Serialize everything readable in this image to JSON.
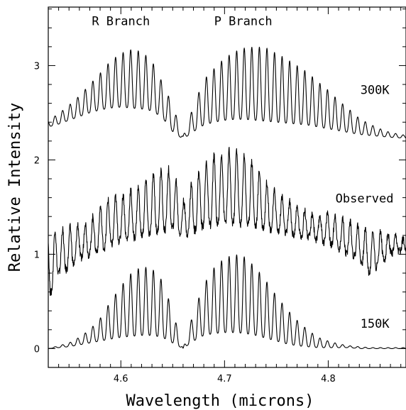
{
  "chart_data": {
    "type": "line",
    "title": "",
    "xlabel": "Wavelength (microns)",
    "ylabel": "Relative Intensity",
    "xlim": [
      4.53,
      4.875
    ],
    "ylim": [
      -0.2,
      3.62
    ],
    "x_ticks": [
      {
        "value": 4.6,
        "label": "4.6"
      },
      {
        "value": 4.7,
        "label": "4.7"
      },
      {
        "value": 4.8,
        "label": "4.8"
      }
    ],
    "y_ticks": [
      {
        "value": 0,
        "label": "0"
      },
      {
        "value": 1,
        "label": "1"
      },
      {
        "value": 2,
        "label": "2"
      },
      {
        "value": 3,
        "label": "3"
      }
    ],
    "grid": false,
    "annotations": [
      {
        "text": "R Branch",
        "x": 4.6,
        "y": 3.43
      },
      {
        "text": "P Branch",
        "x": 4.718,
        "y": 3.43
      },
      {
        "text": "300K",
        "x": 4.845,
        "y": 2.7
      },
      {
        "text": "Observed",
        "x": 4.835,
        "y": 1.55
      },
      {
        "text": "150K",
        "x": 4.845,
        "y": 0.22
      }
    ],
    "series": [
      {
        "name": "300K",
        "x": [
          4.53,
          4.54,
          4.55,
          4.56,
          4.57,
          4.58,
          4.59,
          4.6,
          4.61,
          4.62,
          4.63,
          4.64,
          4.65,
          4.66,
          4.67,
          4.68,
          4.69,
          4.7,
          4.71,
          4.72,
          4.73,
          4.74,
          4.75,
          4.76,
          4.77,
          4.78,
          4.79,
          4.8,
          4.81,
          4.82,
          4.83,
          4.84,
          4.85,
          4.86,
          4.875
        ],
        "y": [
          2.42,
          2.49,
          2.58,
          2.68,
          2.8,
          2.92,
          3.05,
          3.13,
          3.17,
          3.15,
          3.05,
          2.82,
          2.58,
          2.25,
          2.57,
          2.85,
          2.97,
          3.08,
          3.15,
          3.19,
          3.2,
          3.19,
          3.13,
          3.07,
          3.0,
          2.93,
          2.83,
          2.74,
          2.63,
          2.54,
          2.44,
          2.38,
          2.33,
          2.29,
          2.26
        ],
        "envelope_low": [
          2.35,
          2.38,
          2.42,
          2.46,
          2.5,
          2.53,
          2.55,
          2.56,
          2.55,
          2.54,
          2.52,
          2.45,
          2.3,
          2.22,
          2.3,
          2.37,
          2.4,
          2.42,
          2.43,
          2.43,
          2.42,
          2.41,
          2.4,
          2.39,
          2.38,
          2.37,
          2.35,
          2.33,
          2.31,
          2.29,
          2.27,
          2.26,
          2.25,
          2.24,
          2.23
        ]
      },
      {
        "name": "Observed",
        "x": [
          4.53,
          4.54,
          4.55,
          4.56,
          4.57,
          4.58,
          4.59,
          4.6,
          4.61,
          4.62,
          4.63,
          4.64,
          4.65,
          4.66,
          4.67,
          4.68,
          4.69,
          4.7,
          4.71,
          4.72,
          4.73,
          4.74,
          4.75,
          4.76,
          4.77,
          4.78,
          4.79,
          4.8,
          4.81,
          4.82,
          4.83,
          4.84,
          4.85,
          4.86,
          4.875
        ],
        "y": [
          1.3,
          1.25,
          1.28,
          1.32,
          1.35,
          1.5,
          1.6,
          1.62,
          1.68,
          1.72,
          1.85,
          1.9,
          1.9,
          1.55,
          1.8,
          1.95,
          2.05,
          2.08,
          2.12,
          2.05,
          1.95,
          1.78,
          1.65,
          1.58,
          1.5,
          1.45,
          1.4,
          1.45,
          1.4,
          1.35,
          1.3,
          1.25,
          1.25,
          1.2,
          1.15
        ],
        "envelope_low": [
          0.52,
          0.8,
          0.85,
          0.95,
          1.0,
          1.05,
          1.1,
          1.15,
          1.17,
          1.2,
          1.22,
          1.25,
          1.28,
          1.2,
          1.25,
          1.3,
          1.32,
          1.35,
          1.33,
          1.32,
          1.3,
          1.28,
          1.25,
          1.22,
          1.2,
          1.18,
          1.15,
          1.12,
          1.05,
          1.0,
          0.95,
          0.8,
          0.9,
          1.0,
          1.05
        ]
      },
      {
        "name": "150K",
        "x": [
          4.53,
          4.54,
          4.55,
          4.56,
          4.57,
          4.58,
          4.59,
          4.6,
          4.61,
          4.62,
          4.63,
          4.64,
          4.65,
          4.66,
          4.67,
          4.68,
          4.69,
          4.7,
          4.71,
          4.72,
          4.73,
          4.74,
          4.75,
          4.76,
          4.77,
          4.78,
          4.79,
          4.8,
          4.81,
          4.82,
          4.83,
          4.84,
          4.85,
          4.86,
          4.875
        ],
        "y": [
          0.0,
          0.03,
          0.06,
          0.12,
          0.2,
          0.32,
          0.5,
          0.66,
          0.8,
          0.87,
          0.85,
          0.72,
          0.4,
          0.0,
          0.38,
          0.68,
          0.86,
          0.96,
          1.0,
          0.97,
          0.86,
          0.72,
          0.56,
          0.42,
          0.3,
          0.2,
          0.12,
          0.08,
          0.05,
          0.03,
          0.02,
          0.01,
          0.01,
          0.01,
          0.01
        ],
        "envelope_low": [
          0.0,
          0.01,
          0.02,
          0.04,
          0.06,
          0.08,
          0.1,
          0.12,
          0.13,
          0.14,
          0.14,
          0.12,
          0.06,
          0.0,
          0.08,
          0.14,
          0.16,
          0.17,
          0.17,
          0.16,
          0.14,
          0.11,
          0.08,
          0.05,
          0.03,
          0.02,
          0.01,
          0.01,
          0.01,
          0.01,
          0.0,
          0.0,
          0.0,
          0.0,
          0.0
        ]
      }
    ]
  }
}
